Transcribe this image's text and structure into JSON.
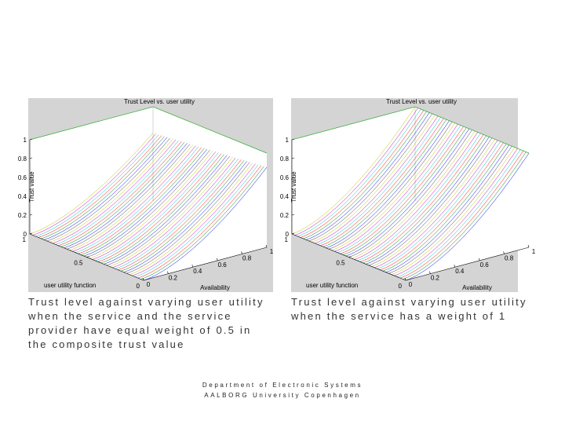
{
  "figures": [
    {
      "title": "Trust Level vs. user utility",
      "zlabel": "Trust value",
      "xlabel": "Availability",
      "ylabel": "user utility function",
      "zticks": [
        0,
        0.2,
        0.4,
        0.6,
        0.8,
        1
      ],
      "xticks": [
        0,
        0.2,
        0.4,
        0.6,
        0.8,
        1
      ],
      "yticks": [
        0,
        0.5,
        1
      ],
      "caption": [
        "Trust level against varying user utility",
        "when the service and the service",
        "provider have equal weight of 0.5 in",
        "the composite trust value"
      ]
    },
    {
      "title": "Trust Level vs. user utility",
      "zlabel": "Trust value",
      "xlabel": "Availability",
      "ylabel": "user utility function",
      "zticks": [
        0,
        0.2,
        0.4,
        0.6,
        0.8,
        1
      ],
      "xticks": [
        0,
        0.2,
        0.4,
        0.6,
        0.8,
        1
      ],
      "yticks": [
        0,
        0.5,
        1
      ],
      "caption": [
        "Trust level against varying user utility",
        "when the service has a weight of 1"
      ]
    }
  ],
  "footer": [
    "Department of Electronic Systems",
    "AALBORG University Copenhagen"
  ]
}
